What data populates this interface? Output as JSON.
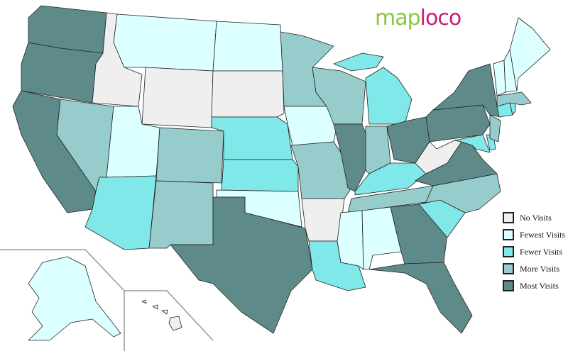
{
  "logo": {
    "part1": "map",
    "part2": "loco",
    "color1": "#8cc63f",
    "color2": "#cc1a78"
  },
  "categories": {
    "none": {
      "label": "No Visits",
      "color": "#efefef"
    },
    "fewest": {
      "label": "Fewest Visits",
      "color": "#dcffff"
    },
    "fewer": {
      "label": "Fewer Visits",
      "color": "#80e8e8"
    },
    "more": {
      "label": "More Visits",
      "color": "#96cccc"
    },
    "most": {
      "label": "Most Visits",
      "color": "#5f8a8a"
    }
  },
  "legend_order": [
    "none",
    "fewest",
    "fewer",
    "more",
    "most"
  ],
  "states": {
    "WA": "most",
    "OR": "most",
    "CA": "most",
    "ID": "none",
    "NV": "more",
    "MT": "fewest",
    "WY": "none",
    "UT": "fewest",
    "AZ": "fewer",
    "CO": "more",
    "NM": "more",
    "ND": "fewest",
    "SD": "none",
    "NE": "fewer",
    "KS": "fewer",
    "OK": "fewest",
    "TX": "most",
    "MN": "more",
    "IA": "fewest",
    "MO": "more",
    "AR": "none",
    "LA": "fewer",
    "WI": "more",
    "IL": "most",
    "MI": "fewer",
    "IN": "more",
    "OH": "most",
    "KY": "fewer",
    "TN": "more",
    "MS": "fewest",
    "AL": "fewest",
    "GA": "most",
    "FL": "most",
    "SC": "fewer",
    "NC": "more",
    "VA": "most",
    "WV": "none",
    "PA": "most",
    "NY": "most",
    "MD": "fewer",
    "DE": "fewer",
    "NJ": "more",
    "CT": "fewer",
    "RI": "fewer",
    "MA": "more",
    "VT": "fewest",
    "NH": "fewest",
    "ME": "fewest",
    "AK": "fewest",
    "HI": "none"
  }
}
